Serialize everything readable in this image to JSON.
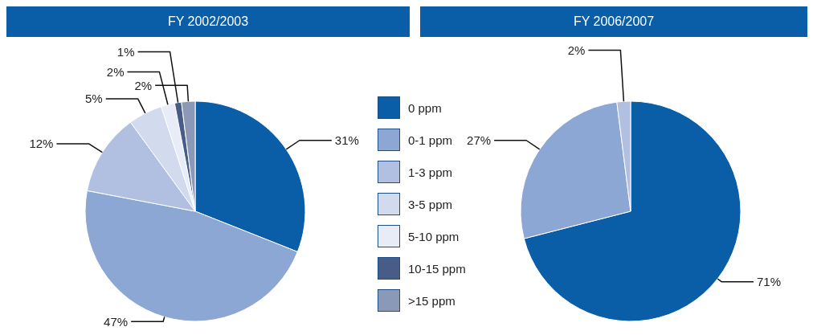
{
  "chart_data": [
    {
      "type": "pie",
      "title": "FY 2002/2003",
      "categories": [
        "0 ppm",
        "0-1 ppm",
        "1-3 ppm",
        "3-5 ppm",
        "5-10 ppm",
        "10-15 ppm",
        ">15 ppm"
      ],
      "values": [
        31,
        47,
        12,
        5,
        2,
        1,
        2
      ],
      "value_labels": [
        "31%",
        "47%",
        "12%",
        "5%",
        "2%",
        "1%",
        "2%"
      ],
      "colors": [
        "#0a5ea8",
        "#8da7d4",
        "#b1bfe1",
        "#d2daee",
        "#e8ecf7",
        "#475c86",
        "#8c99b6"
      ],
      "legend": "right"
    },
    {
      "type": "pie",
      "title": "FY 2006/2007",
      "categories": [
        null,
        null,
        null
      ],
      "values": [
        71,
        27,
        2
      ],
      "value_labels": [
        "71%",
        "27%",
        "2%"
      ],
      "colors": [
        "#0a5ea8",
        "#8da7d4",
        "#b1bfe1"
      ]
    }
  ]
}
